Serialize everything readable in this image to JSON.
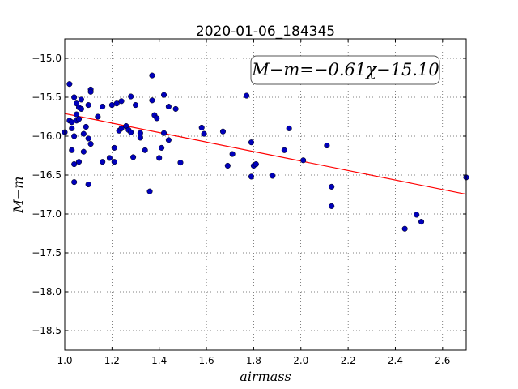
{
  "chart_data": {
    "type": "scatter",
    "title": "2020-01-06_184345",
    "xlabel": "airmass",
    "ylabel": "M−m",
    "xlim": [
      1.0,
      2.7
    ],
    "ylim": [
      -18.75,
      -14.75
    ],
    "y_inverted": true,
    "x_ticks": [
      1.0,
      1.2,
      1.4,
      1.6,
      1.8,
      2.0,
      2.2,
      2.4,
      2.6
    ],
    "x_tick_labels": [
      "1.0",
      "1.2",
      "1.4",
      "1.6",
      "1.8",
      "2.0",
      "2.2",
      "2.4",
      "2.6"
    ],
    "y_ticks": [
      -15.0,
      -15.5,
      -16.0,
      -16.5,
      -17.0,
      -17.5,
      -18.0,
      -18.5
    ],
    "y_tick_labels": [
      "−15.0",
      "−15.5",
      "−16.0",
      "−16.5",
      "−17.0",
      "−17.5",
      "−18.0",
      "−18.5"
    ],
    "grid": true,
    "annotation": "M−m=−0.61χ−15.10",
    "annotation_position": "top-right",
    "fit": {
      "slope": -0.61,
      "intercept": -15.1,
      "x_range": [
        1.0,
        2.7
      ],
      "color": "#ff0000"
    },
    "point_color": "#0000bb",
    "points": [
      [
        1.0,
        -15.95
      ],
      [
        1.02,
        -15.33
      ],
      [
        1.02,
        -15.8
      ],
      [
        1.03,
        -15.9
      ],
      [
        1.03,
        -15.82
      ],
      [
        1.04,
        -16.0
      ],
      [
        1.03,
        -16.18
      ],
      [
        1.04,
        -16.36
      ],
      [
        1.04,
        -16.59
      ],
      [
        1.04,
        -15.5
      ],
      [
        1.05,
        -15.58
      ],
      [
        1.05,
        -15.72
      ],
      [
        1.05,
        -15.8
      ],
      [
        1.06,
        -15.63
      ],
      [
        1.06,
        -15.78
      ],
      [
        1.07,
        -15.53
      ],
      [
        1.07,
        -15.65
      ],
      [
        1.06,
        -16.33
      ],
      [
        1.08,
        -15.97
      ],
      [
        1.09,
        -15.88
      ],
      [
        1.08,
        -16.2
      ],
      [
        1.1,
        -16.03
      ],
      [
        1.1,
        -15.6
      ],
      [
        1.11,
        -15.4
      ],
      [
        1.11,
        -15.43
      ],
      [
        1.11,
        -16.1
      ],
      [
        1.1,
        -16.62
      ],
      [
        1.14,
        -15.75
      ],
      [
        1.16,
        -16.33
      ],
      [
        1.16,
        -15.62
      ],
      [
        1.19,
        -16.28
      ],
      [
        1.2,
        -15.6
      ],
      [
        1.21,
        -16.15
      ],
      [
        1.21,
        -16.33
      ],
      [
        1.22,
        -15.58
      ],
      [
        1.23,
        -15.93
      ],
      [
        1.24,
        -15.9
      ],
      [
        1.24,
        -15.55
      ],
      [
        1.26,
        -15.87
      ],
      [
        1.27,
        -15.92
      ],
      [
        1.28,
        -15.95
      ],
      [
        1.28,
        -15.49
      ],
      [
        1.29,
        -16.27
      ],
      [
        1.3,
        -15.6
      ],
      [
        1.32,
        -15.96
      ],
      [
        1.32,
        -16.02
      ],
      [
        1.34,
        -16.18
      ],
      [
        1.36,
        -16.71
      ],
      [
        1.37,
        -15.22
      ],
      [
        1.37,
        -15.54
      ],
      [
        1.38,
        -15.73
      ],
      [
        1.39,
        -15.77
      ],
      [
        1.4,
        -16.28
      ],
      [
        1.41,
        -16.15
      ],
      [
        1.42,
        -15.47
      ],
      [
        1.42,
        -15.96
      ],
      [
        1.44,
        -16.05
      ],
      [
        1.44,
        -15.62
      ],
      [
        1.47,
        -15.65
      ],
      [
        1.49,
        -16.34
      ],
      [
        1.58,
        -15.89
      ],
      [
        1.59,
        -15.97
      ],
      [
        1.67,
        -15.94
      ],
      [
        1.69,
        -16.38
      ],
      [
        1.71,
        -16.23
      ],
      [
        1.77,
        -15.48
      ],
      [
        1.79,
        -16.08
      ],
      [
        1.79,
        -16.52
      ],
      [
        1.8,
        -16.38
      ],
      [
        1.81,
        -16.36
      ],
      [
        1.88,
        -16.51
      ],
      [
        1.93,
        -16.18
      ],
      [
        1.95,
        -15.9
      ],
      [
        2.01,
        -16.31
      ],
      [
        2.11,
        -16.12
      ],
      [
        2.13,
        -16.65
      ],
      [
        2.13,
        -16.9
      ],
      [
        2.44,
        -17.19
      ],
      [
        2.49,
        -17.01
      ],
      [
        2.51,
        -17.1
      ],
      [
        2.7,
        -16.53
      ]
    ]
  }
}
